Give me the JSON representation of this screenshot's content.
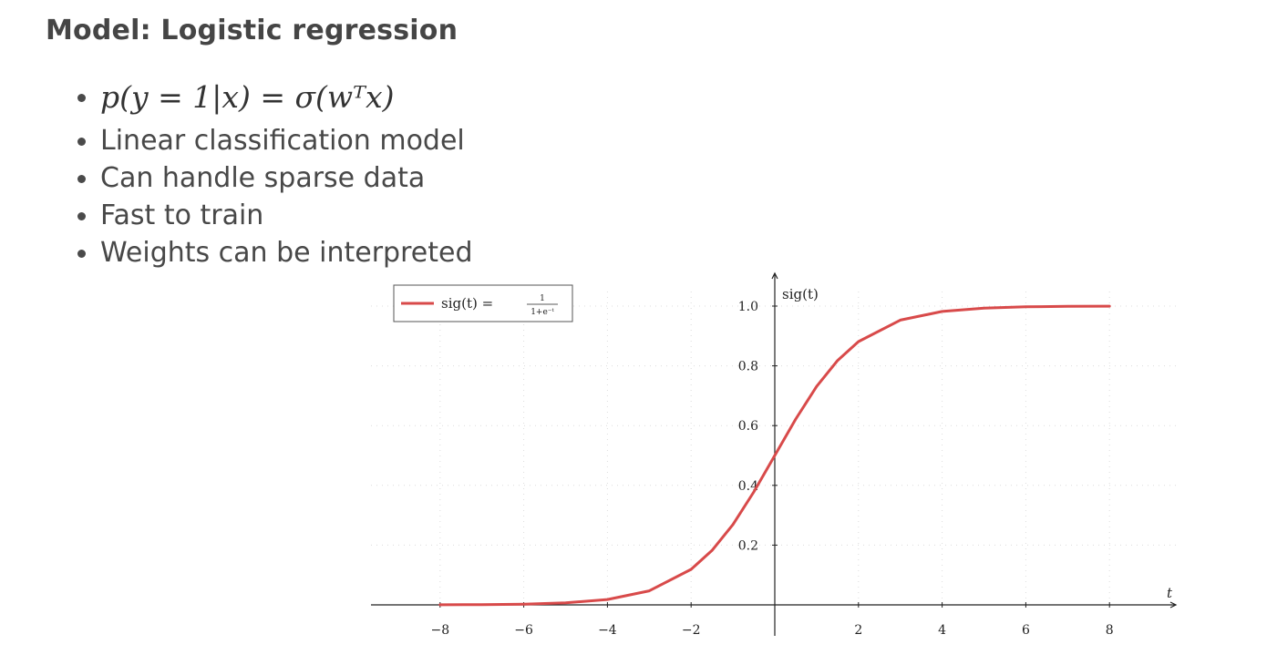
{
  "slide": {
    "title": "Model: Logistic regression",
    "formula": "p(y = 1|x) = σ(wᵀx)",
    "bullets": [
      "Linear classification model",
      "Can handle sparse data",
      "Fast to train",
      "Weights can be interpreted"
    ]
  },
  "chart_data": {
    "type": "line",
    "function": "sig(t) = 1/(1+e^-t)",
    "x": [
      -8,
      -7,
      -6,
      -5,
      -4,
      -3,
      -2,
      -1.5,
      -1,
      -0.5,
      0,
      0.5,
      1,
      1.5,
      2,
      3,
      4,
      5,
      6,
      7,
      8
    ],
    "series": [
      {
        "name": "sig(t) = 1/(1+e^−t)",
        "color": "#d84a4a",
        "values": [
          0.0003,
          0.0009,
          0.0025,
          0.0067,
          0.018,
          0.047,
          0.119,
          0.182,
          0.269,
          0.378,
          0.5,
          0.622,
          0.731,
          0.818,
          0.881,
          0.953,
          0.982,
          0.993,
          0.9975,
          0.9991,
          0.9997
        ]
      }
    ],
    "xlabel": "t",
    "ylabel": "sig(t)",
    "xlim": [
      -9,
      9.5
    ],
    "ylim": [
      -0.08,
      1.1
    ],
    "x_ticks": [
      -8,
      -6,
      -4,
      -2,
      2,
      4,
      6,
      8
    ],
    "x_tick_labels": [
      "−8",
      "−6",
      "−4",
      "−2",
      "2",
      "4",
      "6",
      "8"
    ],
    "y_ticks": [
      0.2,
      0.4,
      0.6,
      0.8,
      1.0
    ],
    "y_tick_labels": [
      "0.2",
      "0.4",
      "0.6",
      "0.8",
      "1.0"
    ],
    "legend": {
      "position": "top-left",
      "lhs": "sig(t) =",
      "numerator": "1",
      "denominator": "1+e⁻ᵗ"
    },
    "grid": true
  }
}
